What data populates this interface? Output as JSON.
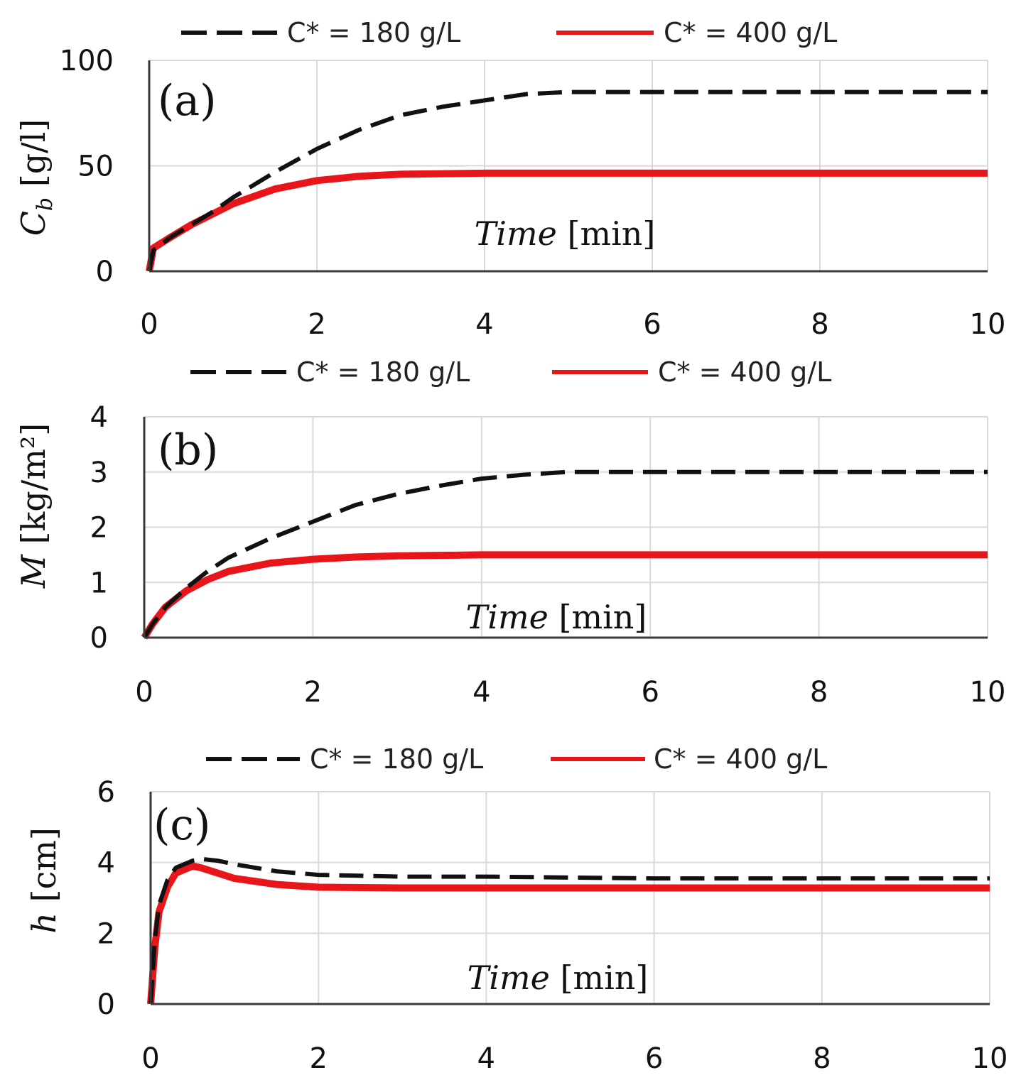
{
  "chart_data": [
    {
      "type": "line",
      "panel_label": "(a)",
      "ylabel_symbol": "C",
      "ylabel_subscript": "b",
      "ylabel_unit": "[g/l]",
      "xlabel_italic": "Time",
      "xlabel_unit": "[min]",
      "xlim": [
        0,
        10
      ],
      "ylim": [
        0,
        100
      ],
      "xticks": [
        "0",
        "2",
        "4",
        "6",
        "8",
        "10"
      ],
      "yticks": [
        "0",
        "50",
        "100"
      ],
      "ytick_values": [
        0,
        50,
        100
      ],
      "grid": true,
      "legend_position": "top",
      "series": [
        {
          "name": "C* = 180 g/L",
          "style": "dashed",
          "color": "#111111",
          "x": [
            0,
            0.05,
            0.25,
            0.5,
            0.75,
            1,
            1.5,
            2,
            2.5,
            3,
            3.5,
            4,
            4.5,
            5,
            6,
            8,
            10
          ],
          "y": [
            0,
            10,
            16,
            22,
            28,
            35,
            47,
            58,
            67,
            74,
            78,
            81,
            84,
            85,
            85,
            85,
            85
          ]
        },
        {
          "name": "C* = 400 g/L",
          "style": "solid",
          "color": "#e8151b",
          "x": [
            0,
            0.05,
            0.25,
            0.5,
            0.75,
            1,
            1.5,
            2,
            2.5,
            3,
            4,
            5,
            6,
            8,
            10
          ],
          "y": [
            0,
            11,
            16,
            22,
            27,
            32,
            39,
            43,
            45,
            46,
            46.5,
            46.5,
            46.5,
            46.5,
            46.5
          ]
        }
      ]
    },
    {
      "type": "line",
      "panel_label": "(b)",
      "ylabel_symbol": "M",
      "ylabel_subscript": "",
      "ylabel_unit": "[kg/m²]",
      "xlabel_italic": "Time",
      "xlabel_unit": "[min]",
      "xlim": [
        0,
        10
      ],
      "ylim": [
        0,
        4
      ],
      "xticks": [
        "0",
        "2",
        "4",
        "6",
        "8",
        "10"
      ],
      "yticks": [
        "0",
        "1",
        "2",
        "3",
        "4"
      ],
      "ytick_values": [
        0,
        1,
        2,
        3,
        4
      ],
      "grid": true,
      "legend_position": "top",
      "series": [
        {
          "name": "C* = 180 g/L",
          "style": "dashed",
          "color": "#111111",
          "x": [
            0,
            0.1,
            0.25,
            0.5,
            0.75,
            1,
            1.5,
            2,
            2.5,
            3,
            3.5,
            4,
            4.5,
            5,
            6,
            8,
            10
          ],
          "y": [
            0,
            0.25,
            0.55,
            0.9,
            1.2,
            1.45,
            1.8,
            2.1,
            2.4,
            2.6,
            2.75,
            2.88,
            2.95,
            3.0,
            3.0,
            3.0,
            3.0
          ]
        },
        {
          "name": "C* = 400 g/L",
          "style": "solid",
          "color": "#e8151b",
          "x": [
            0,
            0.1,
            0.25,
            0.5,
            0.75,
            1,
            1.5,
            2,
            2.5,
            3,
            4,
            5,
            6,
            8,
            10
          ],
          "y": [
            0,
            0.25,
            0.55,
            0.85,
            1.05,
            1.2,
            1.35,
            1.42,
            1.46,
            1.48,
            1.5,
            1.5,
            1.5,
            1.5,
            1.5
          ]
        }
      ]
    },
    {
      "type": "line",
      "panel_label": "(c)",
      "ylabel_symbol": "h",
      "ylabel_subscript": "",
      "ylabel_unit": "[cm]",
      "xlabel_italic": "Time",
      "xlabel_unit": "[min]",
      "xlim": [
        0,
        10
      ],
      "ylim": [
        0,
        6
      ],
      "xticks": [
        "0",
        "2",
        "4",
        "6",
        "8",
        "10"
      ],
      "yticks": [
        "0",
        "2",
        "4",
        "6"
      ],
      "ytick_values": [
        0,
        2,
        4,
        6
      ],
      "grid": true,
      "legend_position": "top",
      "series": [
        {
          "name": "C* = 180 g/L",
          "style": "dashed",
          "color": "#111111",
          "x": [
            0,
            0.05,
            0.1,
            0.2,
            0.3,
            0.5,
            0.6,
            0.8,
            1,
            1.5,
            2,
            3,
            4,
            6,
            8,
            10
          ],
          "y": [
            0,
            1.8,
            2.8,
            3.5,
            3.85,
            4.05,
            4.1,
            4.05,
            3.95,
            3.75,
            3.65,
            3.6,
            3.6,
            3.55,
            3.55,
            3.55
          ]
        },
        {
          "name": "C* = 400 g/L",
          "style": "solid",
          "color": "#e8151b",
          "x": [
            0,
            0.05,
            0.1,
            0.2,
            0.3,
            0.5,
            0.6,
            0.8,
            1,
            1.5,
            2,
            3,
            4,
            6,
            8,
            10
          ],
          "y": [
            0,
            1.6,
            2.6,
            3.3,
            3.7,
            3.9,
            3.85,
            3.7,
            3.55,
            3.38,
            3.3,
            3.28,
            3.28,
            3.28,
            3.28,
            3.28
          ]
        }
      ]
    }
  ]
}
